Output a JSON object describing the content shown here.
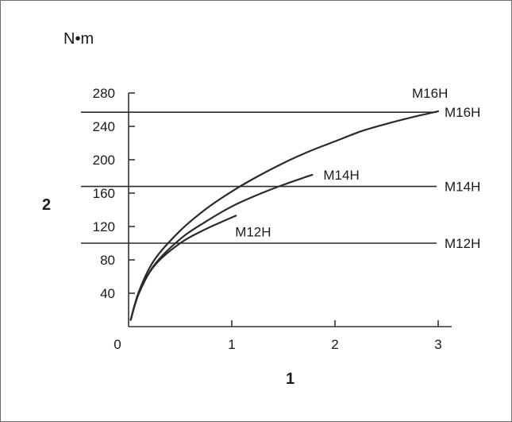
{
  "chart_data": {
    "type": "line",
    "unit_label": "N•m",
    "xlabel": "1",
    "ylabel": "2",
    "xlim": [
      0,
      3.1
    ],
    "ylim": [
      0,
      280
    ],
    "x_ticks": [
      0,
      1,
      2,
      3
    ],
    "y_ticks": [
      40,
      80,
      120,
      160,
      200,
      240,
      280
    ],
    "series": [
      {
        "name": "M16H",
        "x": [
          0.02,
          0.1,
          0.25,
          0.5,
          0.75,
          1.0,
          1.25,
          1.5,
          1.75,
          2.0,
          2.25,
          2.5,
          2.75,
          3.0
        ],
        "y": [
          8,
          42,
          80,
          115,
          141,
          162,
          180,
          196,
          210,
          222,
          234,
          243,
          251,
          258
        ]
      },
      {
        "name": "M14H",
        "x": [
          0.02,
          0.1,
          0.25,
          0.5,
          0.75,
          1.0,
          1.25,
          1.5,
          1.78
        ],
        "y": [
          8,
          40,
          74,
          105,
          126,
          144,
          158,
          170,
          182
        ]
      },
      {
        "name": "M12H",
        "x": [
          0.02,
          0.1,
          0.25,
          0.5,
          0.75,
          1.04
        ],
        "y": [
          8,
          40,
          73,
          100,
          117,
          133
        ]
      }
    ],
    "reference_lines": [
      {
        "name": "M16H",
        "y": 257
      },
      {
        "name": "M14H",
        "y": 168
      },
      {
        "name": "M12H",
        "y": 100
      }
    ]
  }
}
